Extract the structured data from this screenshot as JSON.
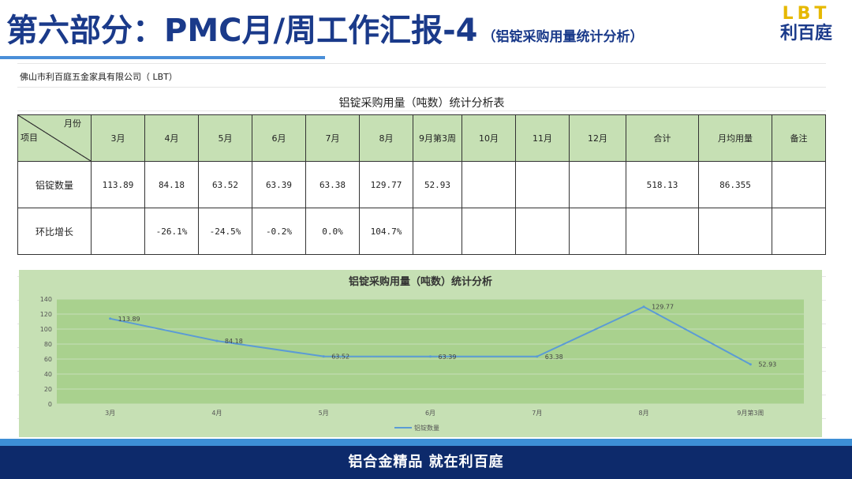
{
  "header": {
    "title": "第六部分：PMC月/周工作汇报-4",
    "subtitle": "（铝锭采购用量统计分析）",
    "logo_top": "LBT",
    "logo_bottom": "利百庭"
  },
  "sheet": {
    "company": "佛山市利百庭五金家具有限公司（ LBT）",
    "table_title": "铝锭采购用量（吨数）统计分析表",
    "corner_top": "月份",
    "corner_bottom": "项目",
    "columns": [
      "3月",
      "4月",
      "5月",
      "6月",
      "7月",
      "8月",
      "9月第3周",
      "10月",
      "11月",
      "12月",
      "合计",
      "月均用量",
      "备注"
    ],
    "rows": [
      {
        "label": "铝锭数量",
        "cells": [
          "113.89",
          "84.18",
          "63.52",
          "63.39",
          "63.38",
          "129.77",
          "52.93",
          "",
          "",
          "",
          "518.13",
          "86.355",
          ""
        ]
      },
      {
        "label": "环比增长",
        "cells": [
          "",
          "-26.1%",
          "-24.5%",
          "-0.2%",
          "0.0%",
          "104.7%",
          "",
          "",
          "",
          "",
          "",
          "",
          ""
        ]
      }
    ]
  },
  "chart_data": {
    "type": "line",
    "title": "铝锭采购用量（吨数）统计分析",
    "categories": [
      "3月",
      "4月",
      "5月",
      "6月",
      "7月",
      "8月",
      "9月第3周"
    ],
    "series": [
      {
        "name": "铝锭数量",
        "values": [
          113.89,
          84.18,
          63.52,
          63.39,
          63.38,
          129.77,
          52.93
        ],
        "color": "#5b9bd5"
      }
    ],
    "ylim": [
      0,
      140
    ],
    "yticks": [
      0,
      20,
      40,
      60,
      80,
      100,
      120,
      140
    ],
    "data_labels": [
      "113.89",
      "84.18",
      "63.52",
      "63.39",
      "63.38",
      "129.77",
      "52.93"
    ],
    "legend": "bottom",
    "grid": true,
    "plot_bg": "#a9d18e"
  },
  "footer": {
    "text": "铝合金精品  就在利百庭"
  },
  "colors": {
    "title_blue": "#1a3a8a",
    "accent_blue": "#4a8fd8",
    "header_green": "#c6e0b4",
    "footer_navy": "#0d2a6b",
    "logo_gold": "#e6b800"
  }
}
